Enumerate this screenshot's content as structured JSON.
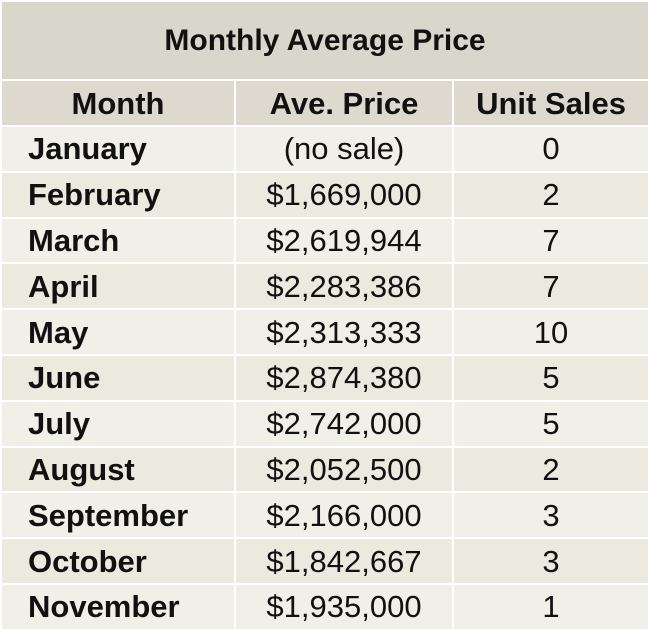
{
  "chart_data": {
    "type": "table",
    "title": "Monthly Average Price",
    "columns": [
      "Month",
      "Ave. Price",
      "Unit Sales"
    ],
    "rows": [
      {
        "month": "January",
        "price": "(no sale)",
        "sales": "0"
      },
      {
        "month": "February",
        "price": "$1,669,000",
        "sales": "2"
      },
      {
        "month": "March",
        "price": "$2,619,944",
        "sales": "7"
      },
      {
        "month": "April",
        "price": "$2,283,386",
        "sales": "7"
      },
      {
        "month": "May",
        "price": "$2,313,333",
        "sales": "10"
      },
      {
        "month": "June",
        "price": "$2,874,380",
        "sales": "5"
      },
      {
        "month": "July",
        "price": "$2,742,000",
        "sales": "5"
      },
      {
        "month": "August",
        "price": "$2,052,500",
        "sales": "2"
      },
      {
        "month": "September",
        "price": "$2,166,000",
        "sales": "3"
      },
      {
        "month": "October",
        "price": "$1,842,667",
        "sales": "3"
      },
      {
        "month": "November",
        "price": "$1,935,000",
        "sales": "1"
      }
    ],
    "colors": {
      "title_background": "#d9d6cb",
      "header_background": "#ddd9cf",
      "row_background": "#f0efe8",
      "grid_line": "#ffffff"
    }
  }
}
